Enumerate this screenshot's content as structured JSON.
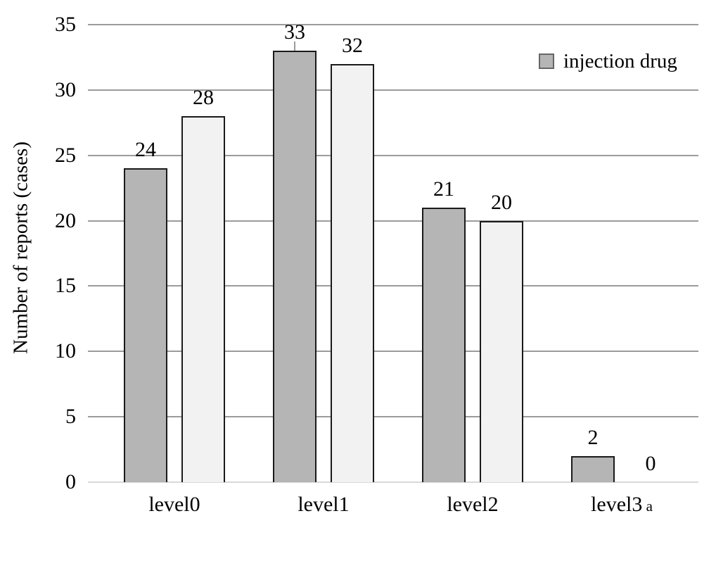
{
  "chart_data": {
    "type": "bar",
    "title": "",
    "xlabel": "",
    "ylabel": "Number of reports (cases)",
    "ylim": [
      0,
      35
    ],
    "yticks": [
      0,
      5,
      10,
      15,
      20,
      25,
      30,
      35
    ],
    "grid": "horizontal",
    "categories": [
      "level0",
      "level1",
      "level2",
      "level3"
    ],
    "category_markers": {
      "level3": "a"
    },
    "series": [
      {
        "name": "injection drug",
        "values": [
          24,
          33,
          21,
          2
        ],
        "fill": "#b5b5b5",
        "border": "#1a1a1a"
      },
      {
        "name": "",
        "values": [
          28,
          32,
          20,
          0
        ],
        "fill": "#f2f2f2",
        "border": "#1a1a1a"
      }
    ],
    "bar_value_labels": [
      [
        "24",
        "33",
        "21",
        "2"
      ],
      [
        "28",
        "32",
        "20",
        "0"
      ]
    ],
    "annotations": [
      {
        "type": "label-leader-tick",
        "category_index": 1,
        "series_index": 0
      }
    ],
    "legend": {
      "position": "top-right",
      "entries": [
        {
          "label": "injection drug",
          "swatch_fill": "#b5b5b5",
          "swatch_border": "#666666"
        }
      ]
    },
    "colors": {
      "gridline": "#9b9b9b",
      "zero_line": "#d9d9d9",
      "text": "#000000",
      "background": "#ffffff"
    }
  }
}
